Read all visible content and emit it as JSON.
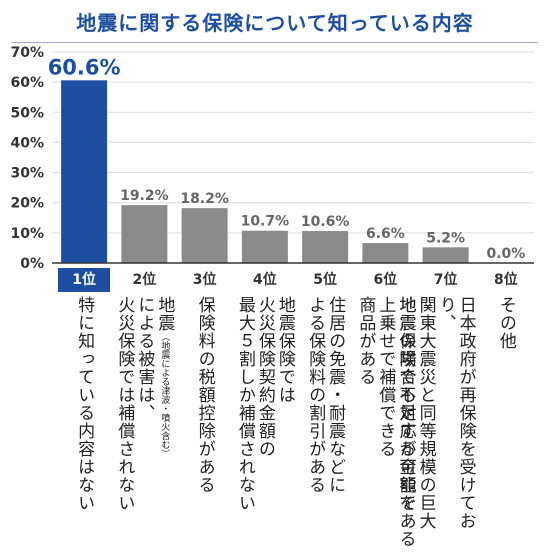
{
  "title": "地震に関する保険について知っている内容",
  "colors": {
    "title": "#1d4ea2",
    "highlight_bar": "#1d4ea2",
    "bar": "#8a8a8a",
    "axis": "#333333",
    "grid": "#dddddd"
  },
  "chart_data": {
    "type": "bar",
    "title": "地震に関する保険について知っている内容",
    "xlabel": "",
    "ylabel": "",
    "ylim": [
      0,
      70
    ],
    "yticks": [
      "0%",
      "10%",
      "20%",
      "30%",
      "40%",
      "50%",
      "60%",
      "70%"
    ],
    "grid": true,
    "ranks": [
      "1位",
      "2位",
      "3位",
      "4位",
      "5位",
      "6位",
      "7位",
      "8位"
    ],
    "categories": [
      "特に知っている内容はない",
      "地震（地震による津波・噴火含む）による被害は、火災保険では補償されない",
      "保険料の税額控除がある",
      "地震保険では火災保険契約金額の最大５割しか補償されない",
      "住居の免震・耐震などによる保険料の割引がある",
      "地震保険で不足する金額を上乗せで補償できる商品がある",
      "日本政府が再保険を受けており、関東大震災と同等規模の巨大地震の場合も対応が可能である",
      "その他"
    ],
    "values": [
      60.6,
      19.2,
      18.2,
      10.7,
      10.6,
      6.6,
      5.2,
      0.0
    ],
    "value_labels": [
      "60.6%",
      "19.2%",
      "18.2%",
      "10.7%",
      "10.6%",
      "6.6%",
      "5.2%",
      "0.0%"
    ]
  },
  "descriptions": [
    {
      "lines": [
        "特に知っている内容はない"
      ]
    },
    {
      "pre": "地震",
      "note": "（地震による津波・噴火含む）",
      "lines": [
        "による被害は、",
        "火災保険では補償されない"
      ]
    },
    {
      "lines": [
        "保険料の税額控除がある"
      ]
    },
    {
      "lines": [
        "地震保険では",
        "火災保険契約金額の",
        "最大５割しか補償されない"
      ]
    },
    {
      "lines": [
        "住居の免震・耐震などに",
        "よる保険料の割引がある"
      ]
    },
    {
      "lines": [
        "地震保険で不足する金額を",
        "上乗せで補償できる",
        "商品がある"
      ]
    },
    {
      "lines": [
        "日本政府が再保険を受けており、",
        "関東大震災と同等規模の巨大",
        "地震の場合も対応が可能である"
      ]
    },
    {
      "lines": [
        "その他"
      ]
    }
  ]
}
